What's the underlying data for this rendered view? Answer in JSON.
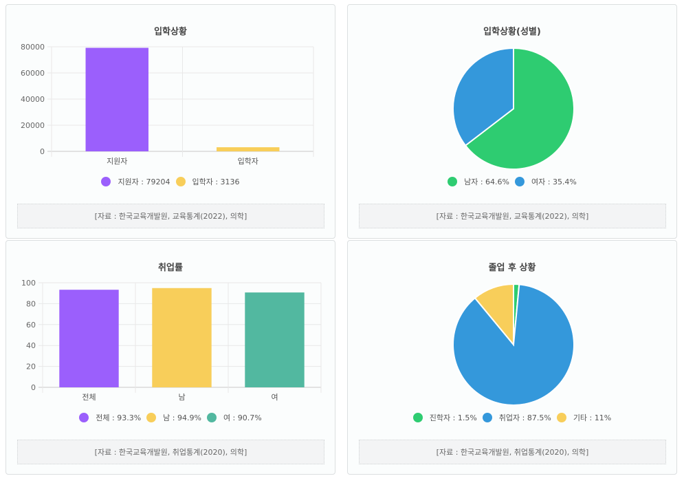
{
  "chart_data": [
    {
      "type": "bar",
      "title": "입학상황",
      "categories": [
        "지원자",
        "입학자"
      ],
      "values": [
        79204,
        3136
      ],
      "colors": [
        "#9b5ffc",
        "#f8ce5a"
      ],
      "ylim": [
        0,
        80000
      ],
      "yticks": [
        0,
        20000,
        40000,
        60000,
        80000
      ],
      "legend": [
        "지원자 : 79204",
        "입학자 : 3136"
      ],
      "source": "[자료 : 한국교육개발원, 교육통계(2022), 의학]"
    },
    {
      "type": "pie",
      "title": "입학상황(성별)",
      "labels": [
        "남자",
        "여자"
      ],
      "values": [
        64.6,
        35.4
      ],
      "colors": [
        "#2ecc71",
        "#3498db"
      ],
      "legend": [
        "남자 : 64.6%",
        "여자 : 35.4%"
      ],
      "source": "[자료 : 한국교육개발원, 교육통계(2022), 의학]"
    },
    {
      "type": "bar",
      "title": "취업률",
      "categories": [
        "전체",
        "남",
        "여"
      ],
      "values": [
        93.3,
        94.9,
        90.7
      ],
      "colors": [
        "#9b5ffc",
        "#f8ce5a",
        "#52b8a0"
      ],
      "ylim": [
        0,
        100
      ],
      "yticks": [
        0,
        20,
        40,
        60,
        80,
        100
      ],
      "legend": [
        "전체 : 93.3%",
        "남 : 94.9%",
        "여 : 90.7%"
      ],
      "source": "[자료 : 한국교육개발원, 취업통계(2020), 의학]"
    },
    {
      "type": "pie",
      "title": "졸업 후 상황",
      "labels": [
        "진학자",
        "취업자",
        "기타"
      ],
      "values": [
        1.5,
        87.5,
        11
      ],
      "colors": [
        "#2ecc71",
        "#3498db",
        "#f8ce5a"
      ],
      "legend": [
        "진학자 : 1.5%",
        "취업자 : 87.5%",
        "기타 : 11%"
      ],
      "source": "[자료 : 한국교육개발원, 취업통계(2020), 의학]"
    }
  ]
}
